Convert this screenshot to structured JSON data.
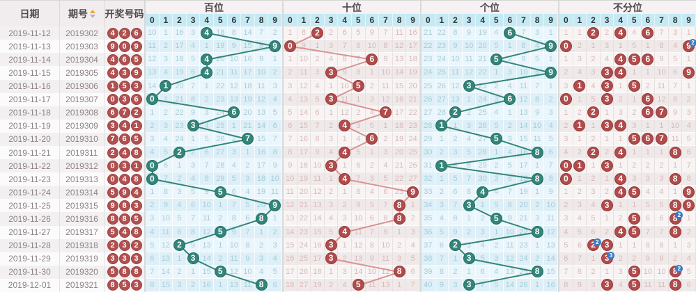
{
  "header": {
    "date_label": "日期",
    "period_label": "期号",
    "numbers_label": "开奖号码",
    "sort_icon": "sort-asc-desc-icon"
  },
  "colors": {
    "teal_ball": "#338579",
    "teal_line": "#338579",
    "red_ball": "#b24b4b",
    "pink_line": "#da9393",
    "badge": "#3a7cc4",
    "left_ball": "#b25050",
    "digit_header_bg": "#c5eaf4"
  },
  "sections": [
    {
      "title": "百位",
      "theme": "blue",
      "key": "hundreds",
      "lines": "teal",
      "digits": [
        "0",
        "1",
        "2",
        "3",
        "4",
        "5",
        "6",
        "7",
        "8",
        "9"
      ]
    },
    {
      "title": "十位",
      "theme": "pink",
      "key": "tens",
      "lines": "pink",
      "digits": [
        "0",
        "1",
        "2",
        "3",
        "4",
        "5",
        "6",
        "7",
        "8",
        "9"
      ]
    },
    {
      "title": "个位",
      "theme": "blue",
      "key": "units",
      "lines": "teal",
      "digits": [
        "0",
        "1",
        "2",
        "3",
        "4",
        "5",
        "6",
        "7",
        "8",
        "9"
      ]
    },
    {
      "title": "不分位",
      "theme": "pink",
      "key": "any_position",
      "lines": "none",
      "digits": [
        "0",
        "1",
        "2",
        "3",
        "4",
        "5",
        "6",
        "7",
        "8",
        "9"
      ]
    }
  ],
  "draws": [
    {
      "date": "2019-11-12",
      "period": "2019302",
      "numbers": [
        "4",
        "2",
        "6"
      ]
    },
    {
      "date": "2019-11-13",
      "period": "2019303",
      "numbers": [
        "9",
        "0",
        "9"
      ]
    },
    {
      "date": "2019-11-14",
      "period": "2019304",
      "numbers": [
        "4",
        "6",
        "5"
      ]
    },
    {
      "date": "2019-11-15",
      "period": "2019305",
      "numbers": [
        "4",
        "3",
        "9"
      ]
    },
    {
      "date": "2019-11-16",
      "period": "2019306",
      "numbers": [
        "1",
        "5",
        "3"
      ]
    },
    {
      "date": "2019-11-17",
      "period": "2019307",
      "numbers": [
        "0",
        "3",
        "6"
      ]
    },
    {
      "date": "2019-11-18",
      "period": "2019308",
      "numbers": [
        "6",
        "7",
        "2"
      ]
    },
    {
      "date": "2019-11-19",
      "period": "2019309",
      "numbers": [
        "3",
        "4",
        "1"
      ]
    },
    {
      "date": "2019-11-20",
      "period": "2019310",
      "numbers": [
        "7",
        "6",
        "5"
      ]
    },
    {
      "date": "2019-11-21",
      "period": "2019311",
      "numbers": [
        "2",
        "4",
        "8"
      ]
    },
    {
      "date": "2019-11-22",
      "period": "2019312",
      "numbers": [
        "0",
        "3",
        "1"
      ]
    },
    {
      "date": "2019-11-23",
      "period": "2019313",
      "numbers": [
        "0",
        "4",
        "8"
      ]
    },
    {
      "date": "2019-11-24",
      "period": "2019314",
      "numbers": [
        "5",
        "9",
        "4"
      ]
    },
    {
      "date": "2019-11-25",
      "period": "2019315",
      "numbers": [
        "9",
        "8",
        "3"
      ]
    },
    {
      "date": "2019-11-26",
      "period": "2019316",
      "numbers": [
        "8",
        "8",
        "5"
      ]
    },
    {
      "date": "2019-11-27",
      "period": "2019317",
      "numbers": [
        "5",
        "4",
        "8"
      ]
    },
    {
      "date": "2019-11-28",
      "period": "2019318",
      "numbers": [
        "2",
        "3",
        "2"
      ]
    },
    {
      "date": "2019-11-29",
      "period": "2019319",
      "numbers": [
        "3",
        "3",
        "3"
      ]
    },
    {
      "date": "2019-11-30",
      "period": "2019320",
      "numbers": [
        "5",
        "8",
        "8"
      ]
    },
    {
      "date": "2019-12-01",
      "period": "2019321",
      "numbers": [
        "8",
        "5",
        "3"
      ]
    }
  ],
  "trend": {
    "hundreds": [
      [
        "10",
        "1",
        "16",
        "3",
        "H4",
        "18",
        "8",
        "14",
        "7",
        "2"
      ],
      [
        "11",
        "2",
        "17",
        "4",
        "1",
        "19",
        "9",
        "15",
        "8",
        "H9"
      ],
      [
        "12",
        "3",
        "18",
        "5",
        "H4",
        "20",
        "10",
        "16",
        "9",
        "1"
      ],
      [
        "13",
        "4",
        "19",
        "6",
        "H4",
        "21",
        "11",
        "17",
        "10",
        "2"
      ],
      [
        "14",
        "H1",
        "20",
        "7",
        "1",
        "22",
        "12",
        "18",
        "11",
        "3"
      ],
      [
        "H0",
        "1",
        "21",
        "8",
        "2",
        "23",
        "13",
        "19",
        "12",
        "4"
      ],
      [
        "1",
        "2",
        "22",
        "9",
        "3",
        "24",
        "H6",
        "20",
        "13",
        "5"
      ],
      [
        "2",
        "3",
        "23",
        "H3",
        "4",
        "25",
        "1",
        "21",
        "14",
        "6"
      ],
      [
        "3",
        "4",
        "24",
        "1",
        "5",
        "26",
        "2",
        "H7",
        "15",
        "7"
      ],
      [
        "4",
        "5",
        "H2",
        "2",
        "6",
        "27",
        "3",
        "1",
        "16",
        "8"
      ],
      [
        "H0",
        "6",
        "1",
        "3",
        "7",
        "28",
        "4",
        "2",
        "17",
        "9"
      ],
      [
        "H0",
        "7",
        "2",
        "4",
        "8",
        "29",
        "5",
        "3",
        "18",
        "10"
      ],
      [
        "1",
        "8",
        "3",
        "5",
        "9",
        "H5",
        "6",
        "4",
        "19",
        "11"
      ],
      [
        "2",
        "9",
        "4",
        "6",
        "10",
        "1",
        "7",
        "5",
        "20",
        "H9"
      ],
      [
        "3",
        "10",
        "5",
        "7",
        "11",
        "2",
        "8",
        "6",
        "H8",
        "1"
      ],
      [
        "4",
        "11",
        "6",
        "8",
        "12",
        "H5",
        "9",
        "7",
        "1",
        "2"
      ],
      [
        "5",
        "12",
        "H2",
        "9",
        "13",
        "1",
        "10",
        "8",
        "2",
        "3"
      ],
      [
        "6",
        "13",
        "1",
        "H3",
        "14",
        "2",
        "11",
        "9",
        "3",
        "4"
      ],
      [
        "7",
        "14",
        "2",
        "1",
        "15",
        "H5",
        "12",
        "10",
        "4",
        "5"
      ],
      [
        "8",
        "15",
        "3",
        "2",
        "16",
        "1",
        "13",
        "11",
        "H8",
        "6"
      ]
    ],
    "tens": [
      [
        "1",
        "8",
        "H2",
        "2",
        "6",
        "5",
        "9",
        "7",
        "11",
        "16"
      ],
      [
        "H0",
        "9",
        "1",
        "3",
        "7",
        "6",
        "10",
        "8",
        "12",
        "17"
      ],
      [
        "1",
        "10",
        "2",
        "4",
        "8",
        "7",
        "H6",
        "9",
        "13",
        "18"
      ],
      [
        "2",
        "11",
        "3",
        "H3",
        "9",
        "8",
        "1",
        "10",
        "14",
        "19"
      ],
      [
        "3",
        "12",
        "4",
        "1",
        "10",
        "H5",
        "2",
        "11",
        "15",
        "20"
      ],
      [
        "4",
        "13",
        "5",
        "H3",
        "11",
        "1",
        "3",
        "12",
        "16",
        "21"
      ],
      [
        "5",
        "14",
        "6",
        "1",
        "12",
        "2",
        "4",
        "H7",
        "17",
        "22"
      ],
      [
        "6",
        "15",
        "7",
        "2",
        "H4",
        "3",
        "5",
        "1",
        "18",
        "23"
      ],
      [
        "7",
        "16",
        "8",
        "3",
        "1",
        "4",
        "H6",
        "2",
        "19",
        "24"
      ],
      [
        "8",
        "17",
        "9",
        "4",
        "H4",
        "5",
        "1",
        "3",
        "20",
        "25"
      ],
      [
        "9",
        "18",
        "10",
        "H3",
        "1",
        "6",
        "2",
        "4",
        "21",
        "26"
      ],
      [
        "10",
        "19",
        "11",
        "1",
        "H4",
        "7",
        "3",
        "5",
        "22",
        "27"
      ],
      [
        "11",
        "20",
        "12",
        "2",
        "1",
        "8",
        "4",
        "6",
        "23",
        "H9"
      ],
      [
        "12",
        "21",
        "13",
        "3",
        "2",
        "9",
        "5",
        "7",
        "H8",
        "1"
      ],
      [
        "13",
        "22",
        "14",
        "4",
        "3",
        "10",
        "6",
        "8",
        "H8",
        "2"
      ],
      [
        "14",
        "23",
        "15",
        "5",
        "H4",
        "11",
        "7",
        "9",
        "1",
        "3"
      ],
      [
        "15",
        "24",
        "16",
        "H3",
        "1",
        "12",
        "8",
        "10",
        "2",
        "4"
      ],
      [
        "16",
        "25",
        "17",
        "H3",
        "2",
        "13",
        "9",
        "11",
        "3",
        "5"
      ],
      [
        "17",
        "26",
        "18",
        "1",
        "3",
        "14",
        "10",
        "12",
        "H8",
        "6"
      ],
      [
        "18",
        "27",
        "19",
        "2",
        "4",
        "H5",
        "11",
        "13",
        "1",
        "7"
      ]
    ],
    "units": [
      [
        "21",
        "22",
        "8",
        "9",
        "19",
        "4",
        "H6",
        "7",
        "3",
        "1"
      ],
      [
        "22",
        "23",
        "9",
        "10",
        "20",
        "5",
        "1",
        "8",
        "4",
        "H9"
      ],
      [
        "23",
        "24",
        "10",
        "11",
        "21",
        "H5",
        "2",
        "9",
        "5",
        "1"
      ],
      [
        "24",
        "25",
        "11",
        "12",
        "22",
        "1",
        "3",
        "10",
        "6",
        "H9"
      ],
      [
        "25",
        "26",
        "12",
        "H3",
        "23",
        "2",
        "4",
        "11",
        "7",
        "1"
      ],
      [
        "26",
        "27",
        "13",
        "1",
        "24",
        "3",
        "H6",
        "12",
        "8",
        "2"
      ],
      [
        "27",
        "28",
        "H2",
        "2",
        "25",
        "4",
        "1",
        "13",
        "9",
        "3"
      ],
      [
        "28",
        "H1",
        "1",
        "3",
        "26",
        "5",
        "2",
        "14",
        "10",
        "4"
      ],
      [
        "29",
        "1",
        "2",
        "4",
        "27",
        "H5",
        "3",
        "15",
        "11",
        "5"
      ],
      [
        "30",
        "2",
        "3",
        "5",
        "28",
        "1",
        "4",
        "16",
        "H8",
        "6"
      ],
      [
        "31",
        "H1",
        "4",
        "6",
        "29",
        "2",
        "5",
        "17",
        "1",
        "7"
      ],
      [
        "32",
        "1",
        "5",
        "7",
        "30",
        "3",
        "6",
        "18",
        "H8",
        "8"
      ],
      [
        "33",
        "2",
        "6",
        "8",
        "H4",
        "4",
        "7",
        "19",
        "1",
        "9"
      ],
      [
        "34",
        "3",
        "7",
        "H3",
        "1",
        "5",
        "8",
        "20",
        "2",
        "10"
      ],
      [
        "35",
        "4",
        "8",
        "1",
        "2",
        "H5",
        "9",
        "21",
        "3",
        "11"
      ],
      [
        "36",
        "5",
        "9",
        "2",
        "3",
        "1",
        "10",
        "22",
        "H8",
        "12"
      ],
      [
        "37",
        "6",
        "H2",
        "3",
        "4",
        "2",
        "11",
        "23",
        "1",
        "13"
      ],
      [
        "38",
        "7",
        "1",
        "H3",
        "5",
        "3",
        "12",
        "24",
        "2",
        "14"
      ],
      [
        "39",
        "8",
        "2",
        "1",
        "6",
        "4",
        "13",
        "25",
        "H8",
        "15"
      ],
      [
        "40",
        "9",
        "3",
        "H3",
        "7",
        "5",
        "14",
        "26",
        "1",
        "16"
      ]
    ],
    "any_position": [
      [
        "1",
        "1",
        "H2",
        "2",
        "H4",
        "4",
        "H6",
        "7",
        "3",
        "1"
      ],
      [
        "H0",
        "2",
        "1",
        "3",
        "1",
        "5",
        "1",
        "8",
        "4",
        "H9:2"
      ],
      [
        "1",
        "3",
        "2",
        "4",
        "H4",
        "H5",
        "H6",
        "9",
        "5",
        "1"
      ],
      [
        "2",
        "4",
        "3",
        "H3",
        "H4",
        "1",
        "1",
        "10",
        "6",
        "H9"
      ],
      [
        "3",
        "H1",
        "4",
        "H3",
        "1",
        "H5",
        "2",
        "11",
        "7",
        "1"
      ],
      [
        "H0",
        "1",
        "5",
        "H3",
        "2",
        "1",
        "H6",
        "12",
        "8",
        "2"
      ],
      [
        "1",
        "2",
        "H2",
        "1",
        "3",
        "2",
        "H6",
        "H7",
        "9",
        "3"
      ],
      [
        "2",
        "H1",
        "1",
        "H3",
        "H4",
        "3",
        "1",
        "1",
        "10",
        "4"
      ],
      [
        "3",
        "1",
        "2",
        "1",
        "1",
        "H5",
        "H6",
        "H7",
        "11",
        "5"
      ],
      [
        "4",
        "2",
        "H2",
        "2",
        "H4",
        "1",
        "1",
        "1",
        "H8",
        "6"
      ],
      [
        "H0",
        "H1",
        "1",
        "H3",
        "1",
        "2",
        "2",
        "2",
        "1",
        "7"
      ],
      [
        "H0",
        "1",
        "2",
        "1",
        "H4",
        "3",
        "3",
        "3",
        "H8",
        "8"
      ],
      [
        "1",
        "2",
        "3",
        "2",
        "H4",
        "H5",
        "4",
        "4",
        "1",
        "H9"
      ],
      [
        "2",
        "3",
        "4",
        "H3",
        "1",
        "1",
        "5",
        "5",
        "H8",
        "H9"
      ],
      [
        "3",
        "4",
        "5",
        "1",
        "2",
        "H5",
        "6",
        "6",
        "H8:2",
        "1"
      ],
      [
        "4",
        "5",
        "6",
        "2",
        "H4",
        "H5",
        "7",
        "7",
        "H8",
        "2"
      ],
      [
        "5",
        "6",
        "H2:2",
        "H3",
        "1",
        "1",
        "8",
        "8",
        "1",
        "3"
      ],
      [
        "6",
        "7",
        "1",
        "H3:3",
        "2",
        "2",
        "9",
        "9",
        "2",
        "4"
      ],
      [
        "7",
        "8",
        "2",
        "1",
        "3",
        "H5",
        "10",
        "10",
        "H8:2",
        "5"
      ],
      [
        "8",
        "9",
        "3",
        "H3",
        "4",
        "H5",
        "11",
        "11",
        "H8",
        "6"
      ]
    ]
  }
}
